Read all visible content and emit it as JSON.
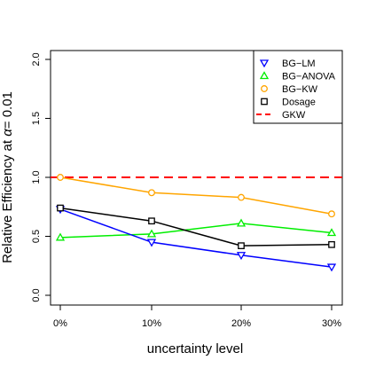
{
  "chart_data": {
    "type": "line",
    "categories": [
      "0%",
      "10%",
      "20%",
      "30%"
    ],
    "xlabel": "uncertainty level",
    "ylabel_main": "Relative Efficiency at",
    "ylabel_alpha": "α",
    "ylabel_tail": "= 0.01",
    "ylim": [
      0.0,
      2.0
    ],
    "yticks": [
      "0.0",
      "0.5",
      "1.0",
      "1.5",
      "2.0"
    ],
    "ytick_values": [
      0.0,
      0.5,
      1.0,
      1.5,
      2.0
    ],
    "grid": false,
    "legend_position": "top-right",
    "series": [
      {
        "name": "BG−LM",
        "values": [
          0.73,
          0.45,
          0.34,
          0.24
        ],
        "color": "#0000ff",
        "marker": "triangle-down",
        "line": "solid"
      },
      {
        "name": "BG−ANOVA",
        "values": [
          0.49,
          0.52,
          0.61,
          0.53
        ],
        "color": "#00ee00",
        "marker": "triangle-up",
        "line": "solid"
      },
      {
        "name": "BG−KW",
        "values": [
          1.0,
          0.87,
          0.83,
          0.69
        ],
        "color": "#ffa500",
        "marker": "circle",
        "line": "solid"
      },
      {
        "name": "Dosage",
        "values": [
          0.74,
          0.63,
          0.42,
          0.43
        ],
        "color": "#000000",
        "marker": "square",
        "line": "solid"
      },
      {
        "name": "GKW",
        "values": [
          1.0,
          1.0,
          1.0,
          1.0
        ],
        "color": "#ff0000",
        "marker": "none",
        "line": "dashed"
      }
    ]
  }
}
